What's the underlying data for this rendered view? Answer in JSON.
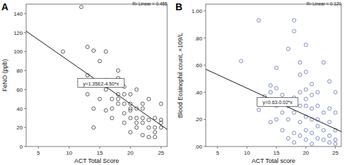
{
  "chart_data": [
    {
      "type": "scatter",
      "title": "A",
      "x_label": "ACT Total Score",
      "y_label": "FeNO (ppb)",
      "color": "#333333",
      "marker": "open-circle",
      "grid": false,
      "xlim": [
        3,
        26
      ],
      "xticks": [
        5,
        10,
        15,
        20,
        25
      ],
      "ylim": [
        0,
        150
      ],
      "yticks": [
        0,
        20,
        40,
        60,
        80,
        100,
        120,
        140
      ],
      "x": [
        9,
        12,
        13,
        13,
        14,
        13,
        14,
        14,
        14,
        15,
        15,
        15,
        16,
        16,
        17,
        17,
        17,
        17,
        18,
        18,
        18,
        18,
        19,
        19,
        19,
        19,
        20,
        20,
        20,
        20,
        20,
        21,
        21,
        21,
        21,
        21,
        22,
        22,
        22,
        22,
        23,
        23,
        23,
        23,
        24,
        24,
        24,
        24,
        25,
        25,
        25,
        25,
        16,
        19,
        18,
        12,
        15,
        16,
        20,
        22
      ],
      "values": [
        100,
        147,
        55,
        75,
        67,
        105,
        101,
        20,
        40,
        68,
        65,
        50,
        70,
        60,
        65,
        50,
        40,
        30,
        80,
        72,
        50,
        45,
        45,
        35,
        55,
        25,
        38,
        55,
        45,
        30,
        15,
        60,
        40,
        30,
        25,
        20,
        45,
        40,
        25,
        12,
        50,
        28,
        20,
        10,
        30,
        20,
        10,
        15,
        45,
        25,
        20,
        28,
        38,
        63,
        55,
        65,
        90,
        100,
        40,
        30
      ],
      "fit": {
        "intercept": 135,
        "slope": -4.5,
        "equation": "y=1.35E2-4.50*x",
        "r2_label": "R² Linear = 0.455"
      }
    },
    {
      "type": "scatter",
      "title": "B",
      "x_label": "ACT Total score",
      "y_label": "Blood Eosinophil count, ×109/L",
      "color": "#5b6db0",
      "marker": "open-circle",
      "grid": false,
      "xlim": [
        3,
        26
      ],
      "xticks": [
        5,
        10,
        15,
        20,
        25
      ],
      "ylim": [
        0,
        1.05
      ],
      "yticks": [
        {
          "value": 0,
          "label": ".00"
        },
        {
          "value": 0.2,
          "label": ".20"
        },
        {
          "value": 0.4,
          "label": ".40"
        },
        {
          "value": 0.6,
          "label": ".60"
        },
        {
          "value": 0.8,
          "label": ".80"
        },
        {
          "value": 1,
          "label": "1.00"
        }
      ],
      "x": [
        9,
        12,
        12,
        13,
        13,
        14,
        14,
        14,
        15,
        15,
        15,
        15,
        16,
        16,
        16,
        17,
        17,
        17,
        17,
        18,
        18,
        18,
        18,
        18,
        18,
        19,
        19,
        19,
        19,
        19,
        20,
        20,
        20,
        20,
        20,
        20,
        20,
        21,
        21,
        21,
        21,
        21,
        22,
        22,
        22,
        22,
        22,
        23,
        23,
        23,
        23,
        24,
        24,
        24,
        24,
        24,
        25,
        25,
        25,
        25,
        25,
        16,
        19,
        21,
        20
      ],
      "values": [
        0.63,
        0.93,
        0.27,
        0.34,
        0.37,
        0.4,
        0.18,
        0.45,
        0.58,
        0.2,
        0.43,
        0.3,
        0.38,
        0.25,
        0.12,
        0.72,
        0.3,
        0.2,
        0.06,
        0.93,
        0.85,
        0.36,
        0.25,
        0.1,
        0.03,
        0.53,
        0.4,
        0.3,
        0.18,
        0.08,
        0.75,
        0.55,
        0.42,
        0.3,
        0.22,
        0.12,
        0.05,
        0.38,
        0.28,
        0.2,
        0.1,
        0.02,
        0.4,
        0.3,
        0.2,
        0.15,
        0.06,
        0.62,
        0.25,
        0.12,
        0.05,
        0.48,
        0.28,
        0.18,
        0.08,
        0.03,
        0.4,
        0.25,
        0.12,
        0.05,
        0.02,
        0.33,
        0.62,
        0.46,
        0.35
      ],
      "fit": {
        "intercept": 0.63,
        "slope": -0.02,
        "equation": "y=0.63-0.02*x",
        "r2_label": "R² Linear = 0.120"
      }
    }
  ]
}
